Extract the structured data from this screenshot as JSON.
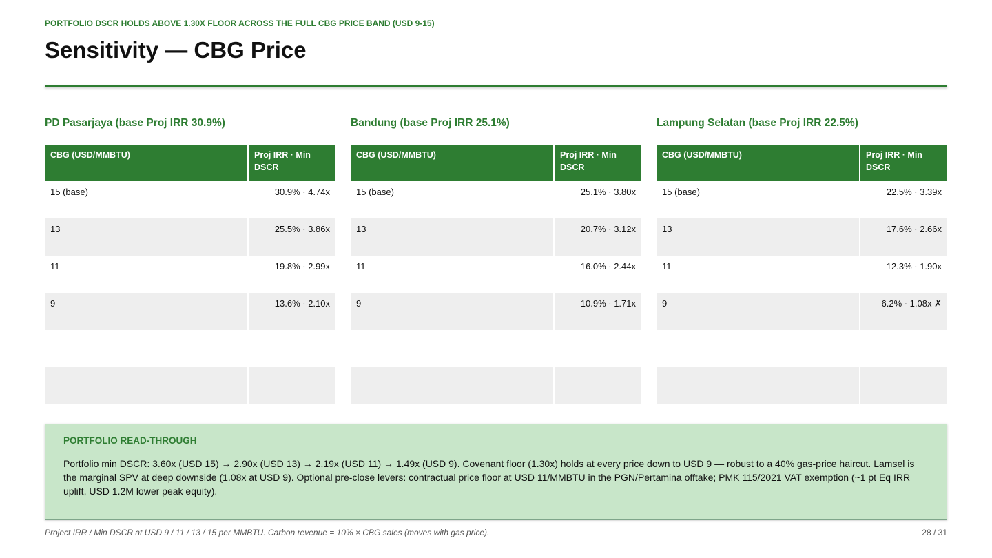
{
  "header": {
    "kicker": "PORTFOLIO DSCR HOLDS ABOVE 1.30X FLOOR ACROSS THE FULL CBG PRICE BAND (USD 9-15)",
    "title": "Sensitivity — CBG Price"
  },
  "tables": [
    {
      "title": "PD Pasarjaya (base Proj IRR 30.9%)",
      "columns": [
        "CBG (USD/MMBTU)",
        "Proj IRR · Min DSCR"
      ],
      "rows": [
        [
          "15 (base)",
          "30.9% · 4.74x"
        ],
        [
          "13",
          "25.5% · 3.86x"
        ],
        [
          "11",
          "19.8% · 2.99x"
        ],
        [
          "9",
          "13.6% · 2.10x"
        ]
      ]
    },
    {
      "title": "Bandung (base Proj IRR 25.1%)",
      "columns": [
        "CBG (USD/MMBTU)",
        "Proj IRR · Min DSCR"
      ],
      "rows": [
        [
          "15 (base)",
          "25.1% · 3.80x"
        ],
        [
          "13",
          "20.7% · 3.12x"
        ],
        [
          "11",
          "16.0% · 2.44x"
        ],
        [
          "9",
          "10.9% · 1.71x"
        ]
      ]
    },
    {
      "title": "Lampung Selatan (base Proj IRR 22.5%)",
      "columns": [
        "CBG (USD/MMBTU)",
        "Proj IRR · Min DSCR"
      ],
      "rows": [
        [
          "15 (base)",
          "22.5% · 3.39x"
        ],
        [
          "13",
          "17.6% · 2.66x"
        ],
        [
          "11",
          "12.3% · 1.90x"
        ],
        [
          "9",
          "6.2% · 1.08x ✗"
        ]
      ]
    }
  ],
  "callout": {
    "title": "PORTFOLIO READ-THROUGH",
    "body": "Portfolio min DSCR: 3.60x (USD 15) → 2.90x (USD 13) → 2.19x (USD 11) → 1.49x (USD 9). Covenant floor (1.30x) holds at every price down to USD 9 — robust to a 40% gas-price haircut. Lamsel is the marginal SPV at deep downside (1.08x at USD 9). Optional pre-close levers: contractual price floor at USD 11/MMBTU in the PGN/Pertamina offtake; PMK 115/2021 VAT exemption (~1 pt Eq IRR uplift, USD 1.2M lower peak equity)."
  },
  "footer": {
    "note": "Project IRR / Min DSCR at USD 9 / 11 / 13 / 15 per MMBTU. Carbon revenue = 10% × CBG sales (moves with gas price).",
    "page": "28 / 31"
  }
}
